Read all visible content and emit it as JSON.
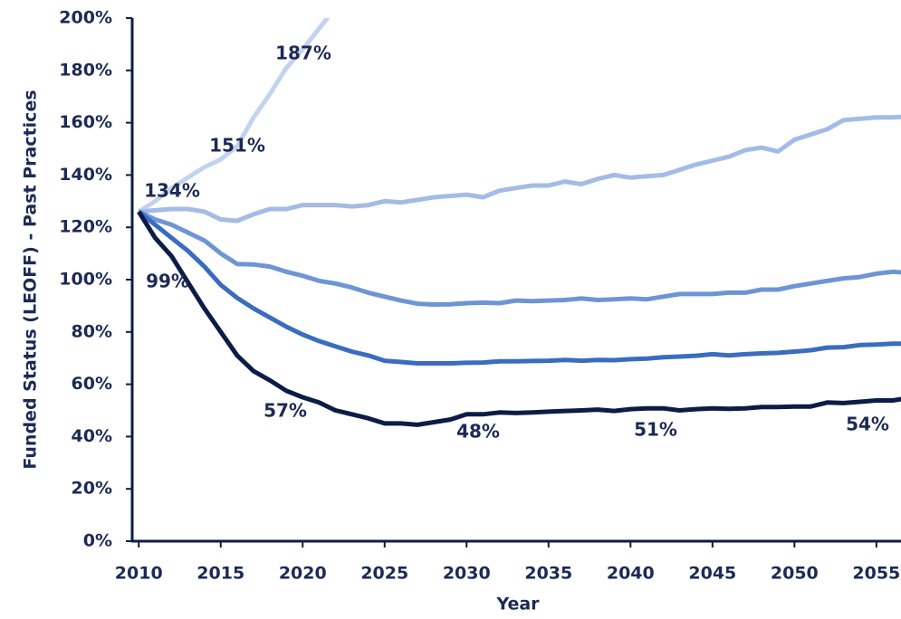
{
  "chart_data": {
    "type": "line",
    "xlabel": "Year",
    "ylabel": "Funded Status (LEOFF) - Past Practices",
    "x": [
      2010,
      2011,
      2012,
      2013,
      2014,
      2015,
      2016,
      2017,
      2018,
      2019,
      2020,
      2021,
      2022,
      2023,
      2024,
      2025,
      2026,
      2027,
      2028,
      2029,
      2030,
      2031,
      2032,
      2033,
      2034,
      2035,
      2036,
      2037,
      2038,
      2039,
      2040,
      2041,
      2042,
      2043,
      2044,
      2045,
      2046,
      2047,
      2048,
      2049,
      2050,
      2051,
      2052,
      2053,
      2054,
      2055,
      2056,
      2057
    ],
    "series": [
      {
        "color": "#c3d3ef",
        "values": [
          126,
          130,
          135,
          139,
          143,
          146,
          151,
          162,
          171,
          181,
          188,
          196,
          204,
          null,
          null,
          null,
          null,
          null,
          null,
          null,
          null,
          null,
          null,
          null,
          null,
          null,
          null,
          null,
          null,
          null,
          null,
          null,
          null,
          null,
          null,
          null,
          null,
          null,
          null,
          null,
          null,
          null,
          null,
          null,
          null,
          null,
          null,
          null
        ]
      },
      {
        "color": "#a3bbe6",
        "values": [
          126,
          126.5,
          127,
          127,
          126,
          123,
          122.5,
          125,
          127,
          127,
          128.5,
          128.5,
          128.5,
          128,
          128.5,
          130,
          129.5,
          130.5,
          131.5,
          132,
          132.5,
          131.5,
          134,
          135,
          136,
          136,
          137.5,
          136.5,
          138.5,
          140,
          139,
          139.5,
          140,
          142,
          144,
          145.5,
          147,
          149.5,
          150.5,
          149,
          153.5,
          155.5,
          157.5,
          161,
          161.5,
          162,
          162,
          162.5
        ]
      },
      {
        "color": "#6d95d6",
        "values": [
          126,
          123,
          121,
          118,
          115,
          110,
          106,
          105.8,
          105,
          103,
          101.5,
          99.5,
          98.5,
          97,
          95,
          93.5,
          92,
          90.8,
          90.5,
          90.6,
          91,
          91.2,
          91,
          92,
          91.8,
          92,
          92.2,
          92.8,
          92.2,
          92.5,
          92.8,
          92.5,
          93.5,
          94.5,
          94.5,
          94.5,
          95,
          95,
          96.2,
          96.2,
          97.5,
          98.5,
          99.5,
          100.5,
          101,
          102.3,
          103,
          102.5
        ]
      },
      {
        "color": "#3a6cc0",
        "values": [
          126,
          121,
          116,
          111,
          105,
          98,
          93,
          89,
          85.5,
          82,
          79,
          76.5,
          74.5,
          72.5,
          71,
          69,
          68.5,
          68,
          68,
          68,
          68.2,
          68.3,
          68.8,
          68.8,
          68.9,
          69,
          69.3,
          69,
          69.3,
          69.2,
          69.6,
          69.8,
          70.3,
          70.6,
          70.9,
          71.5,
          71,
          71.5,
          71.8,
          72,
          72.5,
          73,
          74,
          74.2,
          75,
          75.2,
          75.5,
          75.5
        ]
      },
      {
        "color": "#0c1c47",
        "values": [
          126,
          116,
          109,
          99,
          89,
          80,
          71,
          65,
          61.5,
          57.5,
          55,
          53,
          50,
          48.5,
          47,
          45,
          45,
          44.5,
          45.5,
          46.5,
          48.5,
          48.5,
          49.2,
          49,
          49.2,
          49.5,
          49.8,
          50,
          50.3,
          49.8,
          50.5,
          50.8,
          50.8,
          50,
          50.5,
          50.8,
          50.6,
          50.8,
          51.3,
          51.3,
          51.5,
          51.5,
          53,
          52.8,
          53.3,
          53.8,
          53.8,
          54.8
        ]
      }
    ],
    "annotations": [
      "187%",
      "151%",
      "134%",
      "99%",
      "57%",
      "48%",
      "51%",
      "54%"
    ],
    "xlim": [
      2009.6,
      2056.5
    ],
    "xticks": [
      2010,
      2015,
      2020,
      2025,
      2030,
      2035,
      2040,
      2045,
      2050,
      2055
    ],
    "ylim": [
      0,
      200
    ],
    "yticks": [
      {
        "value": 0,
        "label": "0%"
      },
      {
        "value": 20,
        "label": "20%"
      },
      {
        "value": 40,
        "label": "40%"
      },
      {
        "value": 60,
        "label": "60%"
      },
      {
        "value": 80,
        "label": "80%"
      },
      {
        "value": 100,
        "label": "100%"
      },
      {
        "value": 120,
        "label": "120%"
      },
      {
        "value": 140,
        "label": "140%"
      },
      {
        "value": 160,
        "label": "160%"
      },
      {
        "value": 180,
        "label": "180%"
      },
      {
        "value": 200,
        "label": "200%"
      }
    ],
    "grid": false
  }
}
